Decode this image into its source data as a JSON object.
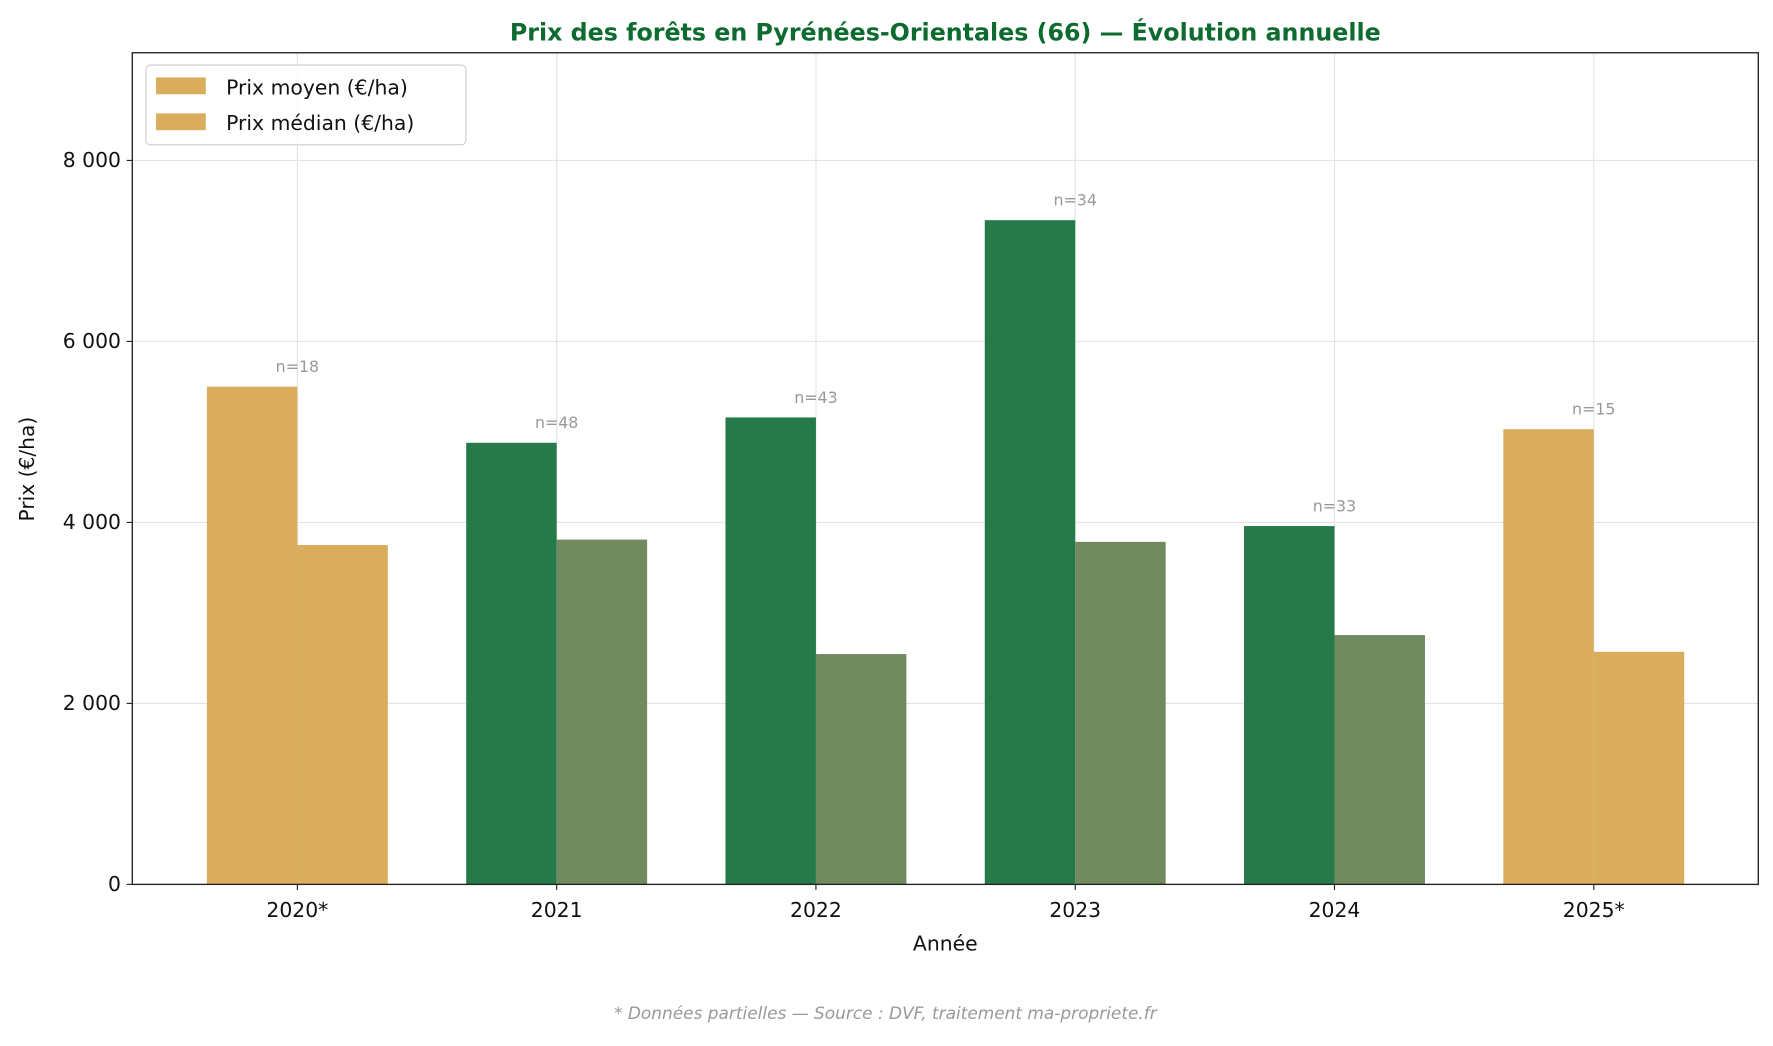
{
  "chart_data": {
    "type": "bar",
    "title": "Prix des forêts en Pyrénées-Orientales (66) — Évolution annuelle",
    "xlabel": "Année",
    "ylabel": "Prix (€/ha)",
    "categories": [
      "2020*",
      "2021",
      "2022",
      "2023",
      "2024",
      "2025*"
    ],
    "series": [
      {
        "name": "Prix moyen (€/ha)",
        "values": [
          5500,
          4880,
          5160,
          7340,
          3960,
          5030
        ]
      },
      {
        "name": "Prix médian (€/ha)",
        "values": [
          3750,
          3810,
          2545,
          3785,
          2755,
          2570
        ]
      }
    ],
    "annotations": [
      "n=18",
      "n=48",
      "n=43",
      "n=34",
      "n=33",
      "n=15"
    ],
    "partial": [
      true,
      false,
      false,
      false,
      false,
      true
    ],
    "yticks": [
      0,
      2000,
      4000,
      6000,
      8000
    ],
    "ytick_labels": [
      "0",
      "2 000",
      "4 000",
      "6 000",
      "8 000"
    ],
    "ylim": [
      0,
      9190
    ],
    "grid": true,
    "legend_position": "top-left",
    "colors": {
      "mean": "#267a4a",
      "median": "#728a5f",
      "partial": "#d9ad5b",
      "title": "#0e6b2f",
      "annotation": "#999999"
    },
    "footnote": "* Données partielles — Source : DVF, traitement ma-propriete.fr"
  }
}
